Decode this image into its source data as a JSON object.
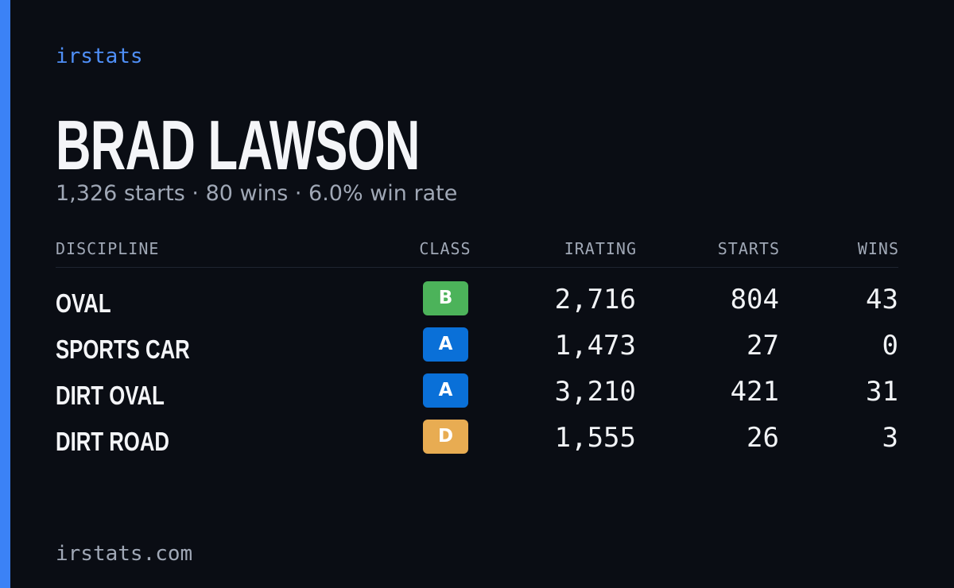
{
  "brand": "irstats",
  "driver": {
    "name": "BRAD LAWSON",
    "summary": "1,326 starts · 80 wins · 6.0% win rate"
  },
  "table": {
    "headers": [
      "DISCIPLINE",
      "CLASS",
      "IRATING",
      "STARTS",
      "WINS"
    ],
    "rows": [
      {
        "discipline": "OVAL",
        "class": "B",
        "badge_color": "#4cb35a",
        "irating": "2,716",
        "starts": "804",
        "wins": "43"
      },
      {
        "discipline": "SPORTS CAR",
        "class": "A",
        "badge_color": "#0a70d8",
        "irating": "1,473",
        "starts": "27",
        "wins": "0"
      },
      {
        "discipline": "DIRT OVAL",
        "class": "A",
        "badge_color": "#0a70d8",
        "irating": "3,210",
        "starts": "421",
        "wins": "31"
      },
      {
        "discipline": "DIRT ROAD",
        "class": "D",
        "badge_color": "#e8ac52",
        "irating": "1,555",
        "starts": "26",
        "wins": "3"
      }
    ]
  },
  "footer": "irstats.com"
}
